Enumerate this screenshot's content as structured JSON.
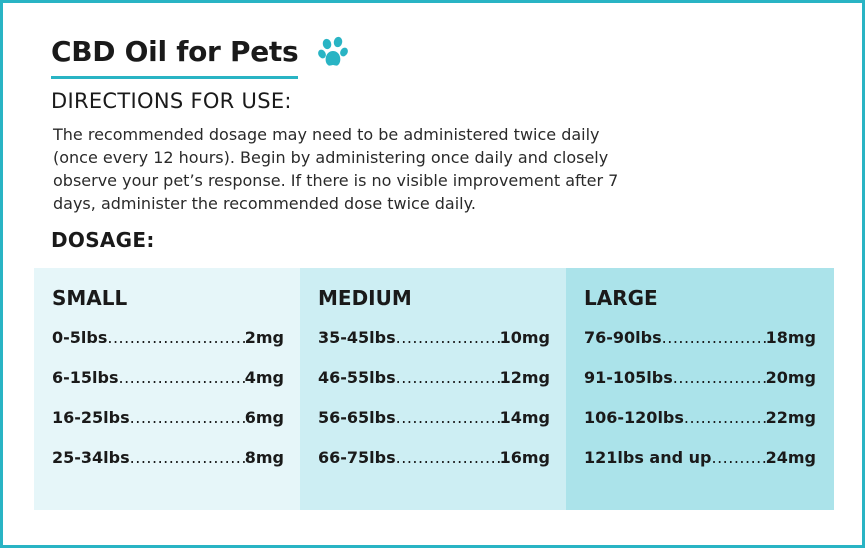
{
  "title": "CBD Oil for Pets",
  "icon": "paw-icon",
  "accent_color": "#29b4c4",
  "directions": {
    "heading": "DIRECTIONS FOR USE:",
    "text": "The recommended dosage may need to be administered twice daily (once every 12 hours). Begin by administering once daily and closely observe your pet’s response. If there is no visible improvement after 7 days, administer the recommended dose twice daily."
  },
  "dosage": {
    "heading": "DOSAGE:",
    "columns": [
      {
        "name": "SMALL",
        "rows": [
          {
            "weight": "0-5lbs",
            "dose": "2mg"
          },
          {
            "weight": "6-15lbs",
            "dose": "4mg"
          },
          {
            "weight": "16-25lbs",
            "dose": "6mg"
          },
          {
            "weight": "25-34lbs",
            "dose": "8mg"
          }
        ]
      },
      {
        "name": "MEDIUM",
        "rows": [
          {
            "weight": "35-45lbs",
            "dose": "10mg"
          },
          {
            "weight": "46-55lbs",
            "dose": "12mg"
          },
          {
            "weight": "56-65lbs",
            "dose": "14mg"
          },
          {
            "weight": "66-75lbs",
            "dose": "16mg"
          }
        ]
      },
      {
        "name": "LARGE",
        "rows": [
          {
            "weight": "76-90lbs",
            "dose": "18mg"
          },
          {
            "weight": "91-105lbs",
            "dose": "20mg"
          },
          {
            "weight": "106-120lbs",
            "dose": "22mg"
          },
          {
            "weight": "121lbs and up",
            "dose": "24mg"
          }
        ]
      }
    ]
  }
}
